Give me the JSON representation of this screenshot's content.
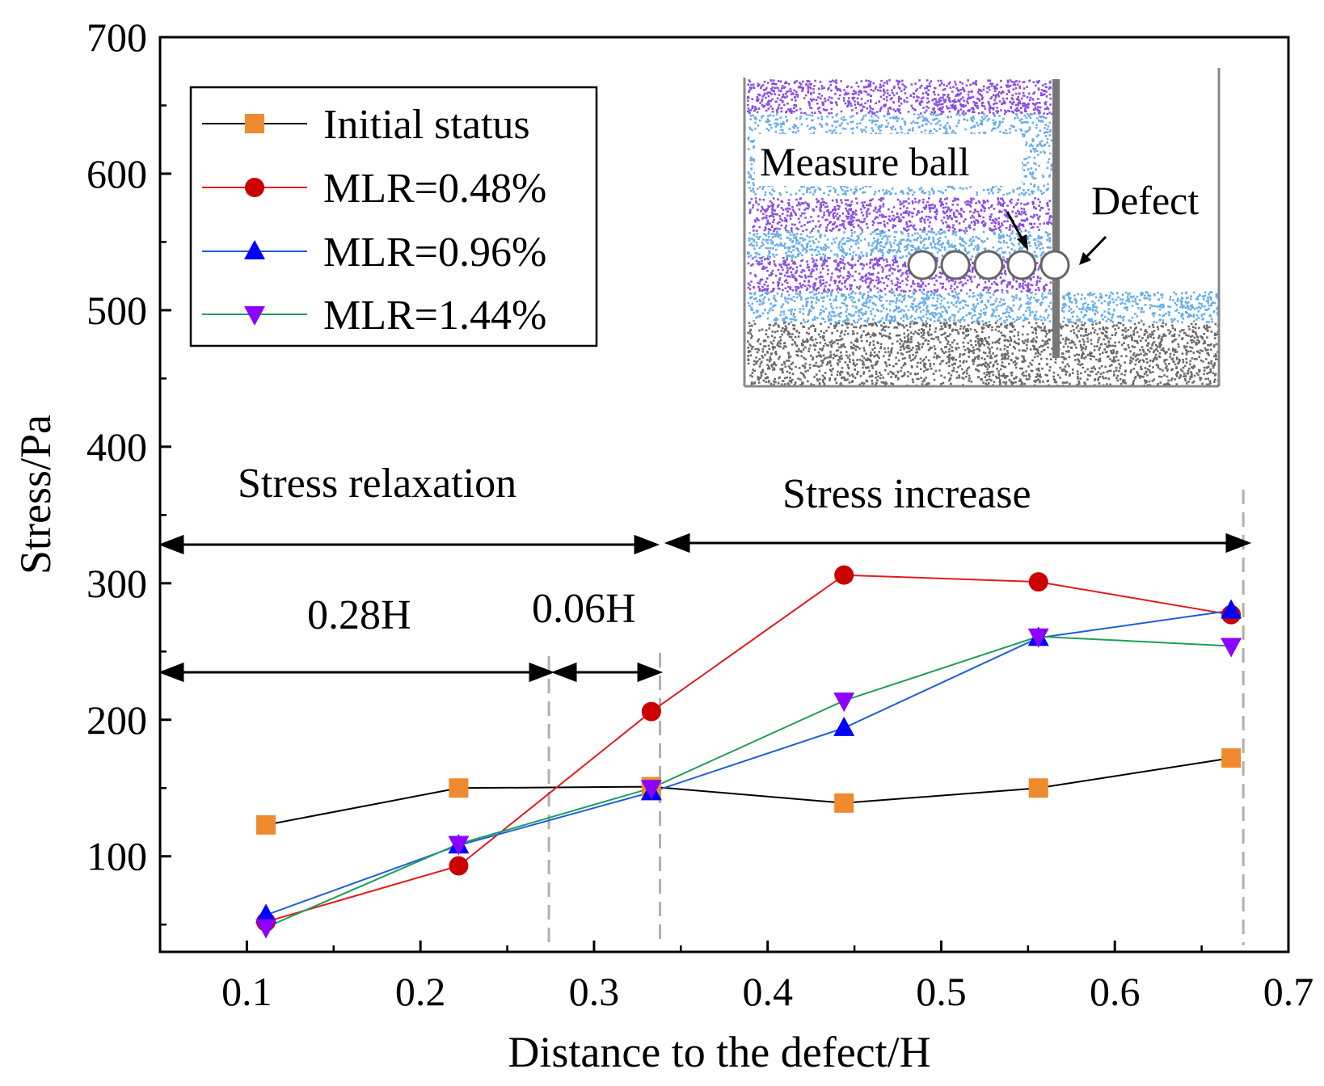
{
  "chart_data": {
    "type": "line",
    "xlabel": "Distance to the defect/H",
    "ylabel": "Stress/Pa",
    "xlim": [
      0.05,
      0.7
    ],
    "ylim": [
      30,
      700
    ],
    "xticks": [
      0.1,
      0.2,
      0.3,
      0.4,
      0.5,
      0.6,
      0.7
    ],
    "xtick_labels": [
      "0.1",
      "0.2",
      "0.3",
      "0.4",
      "0.5",
      "0.6",
      "0.7"
    ],
    "yticks": [
      100,
      200,
      300,
      400,
      500,
      600,
      700
    ],
    "ytick_labels": [
      "100",
      "200",
      "300",
      "400",
      "500",
      "600",
      "700"
    ],
    "x": [
      0.111,
      0.222,
      0.333,
      0.444,
      0.556,
      0.667
    ],
    "series": [
      {
        "name": "Initial status",
        "color": "#000000",
        "marker_color": "#f08a2e",
        "marker": "square",
        "values": [
          123,
          150,
          151,
          139,
          150,
          172
        ]
      },
      {
        "name": "MLR=0.48%",
        "color": "#e31a1c",
        "marker_color": "#cc0000",
        "marker": "circle",
        "values": [
          52,
          93,
          206,
          306,
          301,
          277
        ]
      },
      {
        "name": "MLR=0.96%",
        "color": "#1f5fd6",
        "marker_color": "#0000ff",
        "marker": "triangle-up",
        "values": [
          57,
          108,
          147,
          194,
          260,
          280
        ]
      },
      {
        "name": "MLR=1.44%",
        "color": "#1f9e5a",
        "marker_color": "#8b00ff",
        "marker": "triangle-down",
        "values": [
          48,
          109,
          150,
          214,
          261,
          254
        ]
      }
    ],
    "annotations": {
      "relaxation_label": "Stress relaxation",
      "increase_label": "Stress increase",
      "label_028": "0.28H",
      "label_006": "0.06H"
    },
    "reference_lines_x": [
      0.274,
      0.338,
      0.674
    ],
    "legend_position": "top-left",
    "inset": {
      "measure_label": "Measure ball",
      "defect_label": "Defect"
    }
  }
}
